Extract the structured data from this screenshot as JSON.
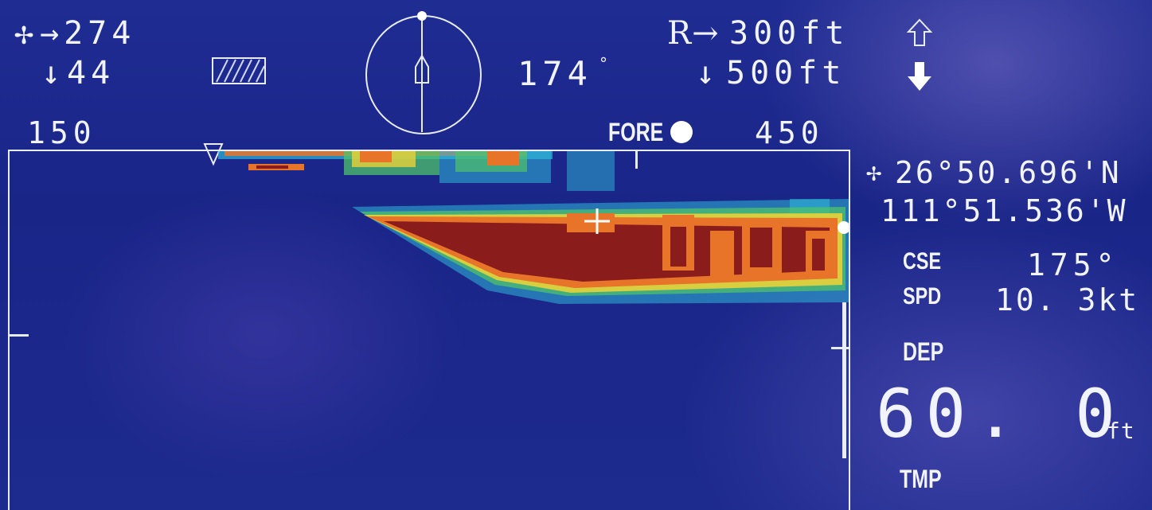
{
  "top_left": {
    "range_marker_symbol": "✢",
    "range_value": "→274",
    "depth_arrow": "↓",
    "depth_value": "44"
  },
  "compass": {
    "heading": "174",
    "degree_symbol": "°"
  },
  "range_settings": {
    "range_label": "R→",
    "range_value": "300ft",
    "depth_arrow": "↓",
    "depth_value": "500ft"
  },
  "scale": {
    "left_value": "150",
    "fore_label": "FORE",
    "right_value": "450"
  },
  "position": {
    "lat": "26°50.696'N",
    "lon": "111°51.536'W"
  },
  "readouts": {
    "cse_label": "CSE",
    "cse_value": "175°",
    "spd_label": "SPD",
    "spd_value": "10. 3kt",
    "dep_label": "DEP",
    "dep_value": "60. 0",
    "dep_unit": "ft",
    "tmp_label": "TMP"
  },
  "colors": {
    "background": "#1b2687",
    "text": "#f1f3ff",
    "echo_strong": "#8a1c1c",
    "echo_orange": "#e8742a",
    "echo_yellow": "#e8d23a",
    "echo_green": "#4fc36a",
    "echo_cyan": "#2fb7d8"
  },
  "icons": {
    "crosshair": "crosshair-icon",
    "hatched_box": "hatched-box-icon",
    "up_arrow_outline": "up-arrow-outline-icon",
    "down_arrow_filled": "down-arrow-filled-icon",
    "ship": "ship-compass-icon"
  }
}
